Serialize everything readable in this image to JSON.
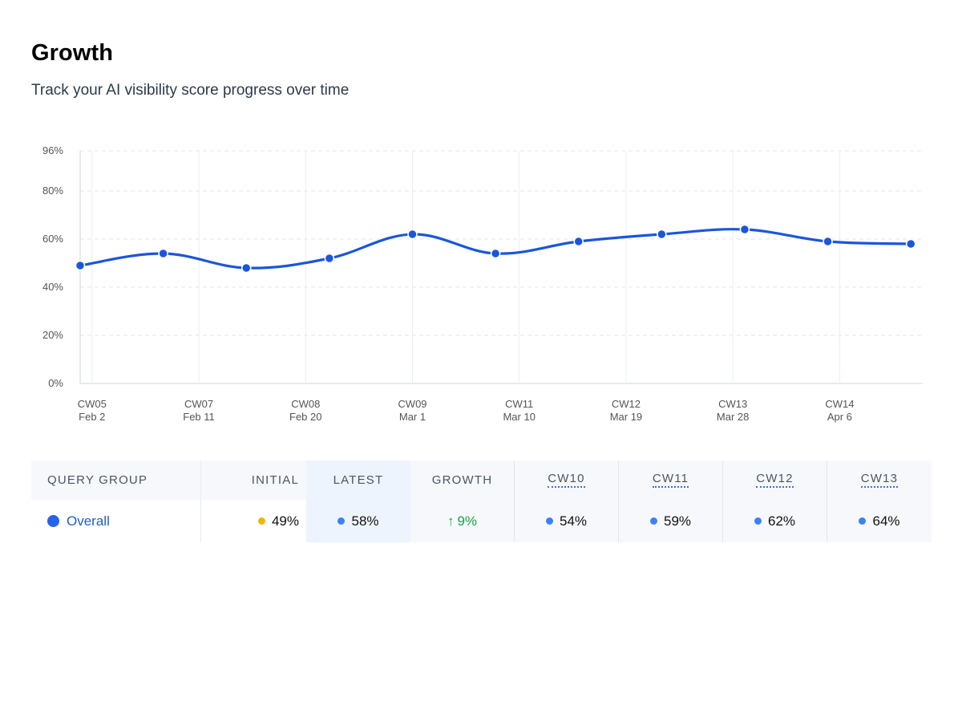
{
  "header": {
    "title": "Growth",
    "subtitle": "Track your AI visibility score progress over time"
  },
  "colors": {
    "line": "#1a56db",
    "initial_dot": "#f2b705",
    "latest_dot": "#3b82f6",
    "growth_up": "#16a34a",
    "overall_dot": "#2563eb"
  },
  "chart_data": {
    "type": "line",
    "title": "",
    "xlabel": "",
    "ylabel": "",
    "ylim": [
      0,
      96
    ],
    "y_ticks": [
      "96%",
      "80%",
      "60%",
      "40%",
      "20%",
      "0%"
    ],
    "y_tick_values": [
      96,
      80,
      60,
      40,
      20,
      0
    ],
    "x_ticks": [
      {
        "week": "CW05",
        "date": "Feb 2"
      },
      {
        "week": "CW07",
        "date": "Feb 11"
      },
      {
        "week": "CW08",
        "date": "Feb 20"
      },
      {
        "week": "CW09",
        "date": "Mar 1"
      },
      {
        "week": "CW11",
        "date": "Mar 10"
      },
      {
        "week": "CW12",
        "date": "Mar 19"
      },
      {
        "week": "CW13",
        "date": "Mar 28"
      },
      {
        "week": "CW14",
        "date": "Apr 6"
      }
    ],
    "x_range": [
      "2026-02-01",
      "2026-04-13"
    ],
    "grid": true,
    "series": [
      {
        "points": [
          {
            "x": "2026-02-01",
            "y": 49
          },
          {
            "x": "2026-02-08",
            "y": 54
          },
          {
            "x": "2026-02-15",
            "y": 48
          },
          {
            "x": "2026-02-22",
            "y": 52
          },
          {
            "x": "2026-03-01",
            "y": 62
          },
          {
            "x": "2026-03-08",
            "y": 54
          },
          {
            "x": "2026-03-15",
            "y": 59
          },
          {
            "x": "2026-03-22",
            "y": 62
          },
          {
            "x": "2026-03-29",
            "y": 64
          },
          {
            "x": "2026-04-05",
            "y": 59
          },
          {
            "x": "2026-04-12",
            "y": 58
          }
        ]
      }
    ]
  },
  "table": {
    "headers": {
      "query_group": "QUERY GROUP",
      "initial": "INITIAL",
      "latest": "LATEST",
      "growth": "GROWTH",
      "cw": [
        "CW10",
        "CW11",
        "CW12",
        "CW13"
      ]
    },
    "rows": [
      {
        "group": "Overall",
        "initial": "49%",
        "latest": "58%",
        "growth_arrow": "↑",
        "growth": "9%",
        "cw": [
          "54%",
          "59%",
          "62%",
          "64%"
        ]
      }
    ]
  }
}
